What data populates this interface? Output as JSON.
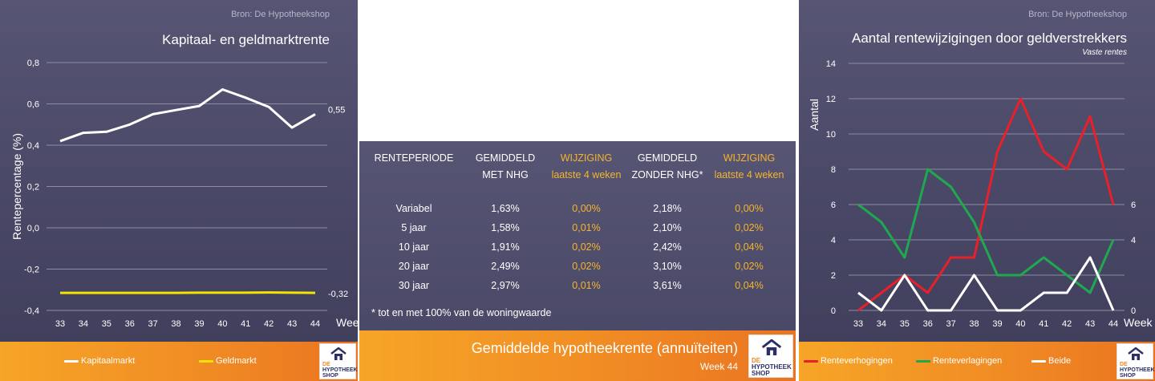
{
  "left_chart": {
    "source": "Bron: De Hypotheekshop",
    "title": "Kapitaal- en geldmarktrente",
    "ylabel": "Rentepercentage (%)",
    "xlabel": "Week",
    "chart_data": {
      "type": "line",
      "title": "Kapitaal- en geldmarktrente",
      "xlabel": "Week",
      "ylabel": "Rentepercentage (%)",
      "x": [
        33,
        34,
        35,
        36,
        37,
        38,
        39,
        40,
        41,
        42,
        43,
        44
      ],
      "ylim": [
        -0.4,
        0.8
      ],
      "yticks": [
        "-0,4",
        "-0,2",
        "0,0",
        "0,2",
        "0,4",
        "0,6",
        "0,8"
      ],
      "grid": true,
      "legend": "bottom",
      "series": [
        {
          "name": "Kapitaalmarkt",
          "color": "#ffffff",
          "values": [
            0.42,
            0.46,
            0.465,
            0.5,
            0.55,
            0.57,
            0.59,
            0.67,
            0.63,
            0.585,
            0.485,
            0.55
          ],
          "end_label": "0,55"
        },
        {
          "name": "Geldmarkt",
          "color": "#f2e600",
          "values": [
            -0.315,
            -0.315,
            -0.315,
            -0.315,
            -0.315,
            -0.315,
            -0.314,
            -0.314,
            -0.314,
            -0.313,
            -0.314,
            -0.315
          ],
          "end_label": "-0,32"
        }
      ]
    }
  },
  "right_chart": {
    "source": "Bron: De Hypotheekshop",
    "title": "Aantal rentewijzigingen door geldverstrekkers",
    "subtitle": "Vaste rentes",
    "ylabel": "Aantal",
    "xlabel": "Week",
    "chart_data": {
      "type": "line",
      "title": "Aantal rentewijzigingen door geldverstrekkers",
      "subtitle": "Vaste rentes",
      "xlabel": "Week",
      "ylabel": "Aantal",
      "x": [
        33,
        34,
        35,
        36,
        37,
        38,
        39,
        40,
        41,
        42,
        43,
        44
      ],
      "ylim": [
        0,
        14
      ],
      "yticks": [
        "0",
        "2",
        "4",
        "6",
        "8",
        "10",
        "12",
        "14"
      ],
      "grid": true,
      "legend": "bottom",
      "series": [
        {
          "name": "Renteverhogingen",
          "color": "#e8202a",
          "values": [
            0,
            1,
            2,
            1,
            3,
            3,
            9,
            12,
            9,
            8,
            11,
            6
          ],
          "end_label": "6"
        },
        {
          "name": "Renteverlagingen",
          "color": "#1fa84f",
          "values": [
            6,
            5,
            3,
            8,
            7,
            5,
            2,
            2,
            3,
            2,
            1,
            4
          ],
          "end_label": "4"
        },
        {
          "name": "Beide",
          "color": "#ffffff",
          "values": [
            1,
            0,
            2,
            0,
            0,
            2,
            0,
            0,
            1,
            1,
            3,
            0
          ],
          "end_label": "0"
        }
      ]
    }
  },
  "table": {
    "headers": [
      {
        "line1": "RENTEPERIODE",
        "line2": "",
        "highlight": false
      },
      {
        "line1": "GEMIDDELD",
        "line2": "MET NHG",
        "highlight": false
      },
      {
        "line1": "WIJZIGING",
        "line2": "laatste 4 weken",
        "highlight": true
      },
      {
        "line1": "GEMIDDELD",
        "line2": "ZONDER NHG*",
        "highlight": false
      },
      {
        "line1": "WIJZIGING",
        "line2": "laatste 4 weken",
        "highlight": true
      }
    ],
    "rows": [
      [
        "Variabel",
        "1,63%",
        "0,00%",
        "2,18%",
        "0,00%"
      ],
      [
        "5 jaar",
        "1,58%",
        "0,01%",
        "2,10%",
        "0,02%"
      ],
      [
        "10 jaar",
        "1,91%",
        "0,02%",
        "2,42%",
        "0,04%"
      ],
      [
        "20 jaar",
        "2,49%",
        "0,02%",
        "3,10%",
        "0,02%"
      ],
      [
        "30 jaar",
        "2,97%",
        "0,01%",
        "3,61%",
        "0,04%"
      ]
    ],
    "note": "* tot en met 100% van de woningwaarde",
    "footer_title": "Gemiddelde hypotheekrente (annuïteiten)",
    "footer_week": "Week 44"
  },
  "logo": {
    "line1": "DE",
    "line2": "HYPOTHEEK",
    "line3": "SHOP"
  }
}
